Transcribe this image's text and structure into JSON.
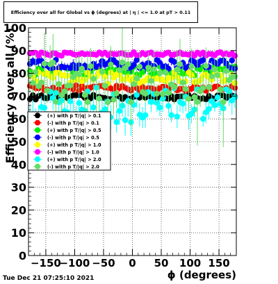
{
  "chart_data": {
    "type": "scatter",
    "title": "Efficiency over all for Global vs ϕ (degrees) at | η | <= 1.0 at pT > 0.11",
    "xlabel": "ϕ (degrees)",
    "ylabel": "Efficiency over all (%)",
    "xlim": [
      -180,
      180
    ],
    "ylim": [
      0,
      100
    ],
    "xticks": [
      -150,
      -100,
      -50,
      0,
      50,
      100,
      150
    ],
    "yticks": [
      0,
      10,
      20,
      30,
      40,
      50,
      60,
      70,
      80,
      90,
      100
    ],
    "grid": true,
    "legend_position": "center-left",
    "bins": 72,
    "series": [
      {
        "name": "(+) with p T/|q| > 0.1",
        "color": "#000000",
        "level": 69.5,
        "spread": 1.0,
        "err": 1.2,
        "dips": []
      },
      {
        "name": "(-) with p T/|q| > 0.1",
        "color": "#ff0000",
        "level": 73.5,
        "spread": 1.2,
        "err": 1.5,
        "dips": []
      },
      {
        "name": "(+) with p T/|q| > 0.5",
        "color": "#00ee00",
        "level": 81.0,
        "spread": 2.0,
        "err": 2.0,
        "dips": []
      },
      {
        "name": "(-) with p T/|q| > 0.5",
        "color": "#0000ff",
        "level": 84.0,
        "spread": 2.0,
        "err": 2.0,
        "dips": []
      },
      {
        "name": "(+) with p T/|q| > 1.0",
        "color": "#ffff00",
        "level": 78.0,
        "spread": 2.5,
        "err": 2.5,
        "dips": []
      },
      {
        "name": "(-) with p T/|q| > 1.0",
        "color": "#ff00ff",
        "level": 88.5,
        "spread": 0.8,
        "err": 1.0,
        "dips": []
      },
      {
        "name": "(+) with p T/|q| > 2.0",
        "color": "#00ffff",
        "level": 66.0,
        "spread": 8.0,
        "err": 5.0,
        "dips": [
          [
            -120,
            48
          ],
          [
            -105,
            52
          ],
          [
            -70,
            52
          ],
          [
            -25,
            53
          ],
          [
            15,
            47
          ],
          [
            40,
            55
          ],
          [
            85,
            58
          ],
          [
            125,
            46
          ],
          [
            160,
            44
          ]
        ]
      },
      {
        "name": "(-) with p T/|q| > 2.0",
        "color": "#66dd66",
        "level": 76.0,
        "spread": 9.0,
        "err": 6.0,
        "dips": [
          [
            -140,
            100
          ],
          [
            105,
            100
          ],
          [
            -165,
            60
          ],
          [
            -95,
            58
          ],
          [
            -40,
            62
          ],
          [
            5,
            55
          ],
          [
            15,
            50
          ],
          [
            70,
            36
          ],
          [
            110,
            48
          ],
          [
            135,
            39
          ],
          [
            160,
            38
          ],
          [
            -5,
            62
          ],
          [
            -62,
            60
          ]
        ]
      }
    ]
  },
  "footer": {
    "timestamp": "Tue Dec 21 07:25:10 2021"
  }
}
